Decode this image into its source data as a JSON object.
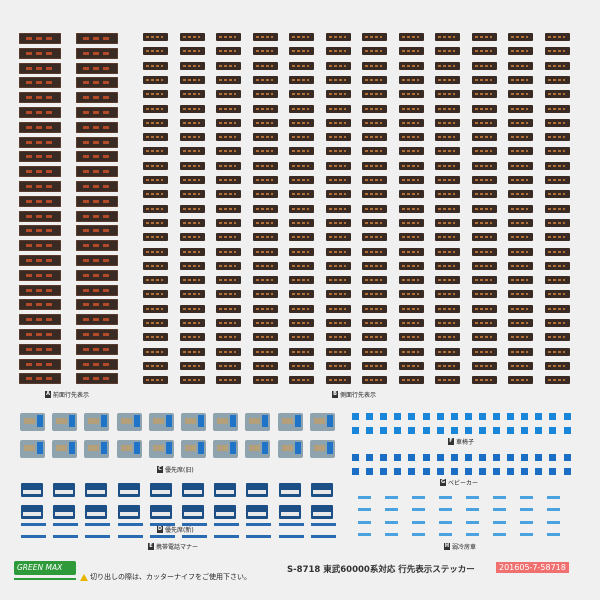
{
  "sections": {
    "a": {
      "letter": "A",
      "label": "前面行先表示"
    },
    "b": {
      "letter": "B",
      "label": "側面行先表示"
    },
    "c": {
      "letter": "C",
      "label": "優先席(旧)"
    },
    "d": {
      "letter": "D",
      "label": "優先席(新)"
    },
    "e": {
      "letter": "E",
      "label": "携帯電話マナー"
    },
    "f": {
      "letter": "F",
      "label": "車椅子"
    },
    "g": {
      "letter": "G",
      "label": "ベビーカー"
    },
    "h": {
      "letter": "H",
      "label": "弱冷房車"
    }
  },
  "footer": {
    "brand": "GREEN MAX",
    "warning": "切り出しの際は、カッターナイフをご使用下さい。",
    "product": "S-8718 東武60000系対応 行先表示ステッカー",
    "code": "201605-7-58718"
  },
  "colors": {
    "sign_bg": "#3a2a24",
    "sign_text": "#c8502a",
    "accent_blue": "#1a86d9",
    "brand_green": "#2f9a3a",
    "code_bg": "#f07070"
  }
}
